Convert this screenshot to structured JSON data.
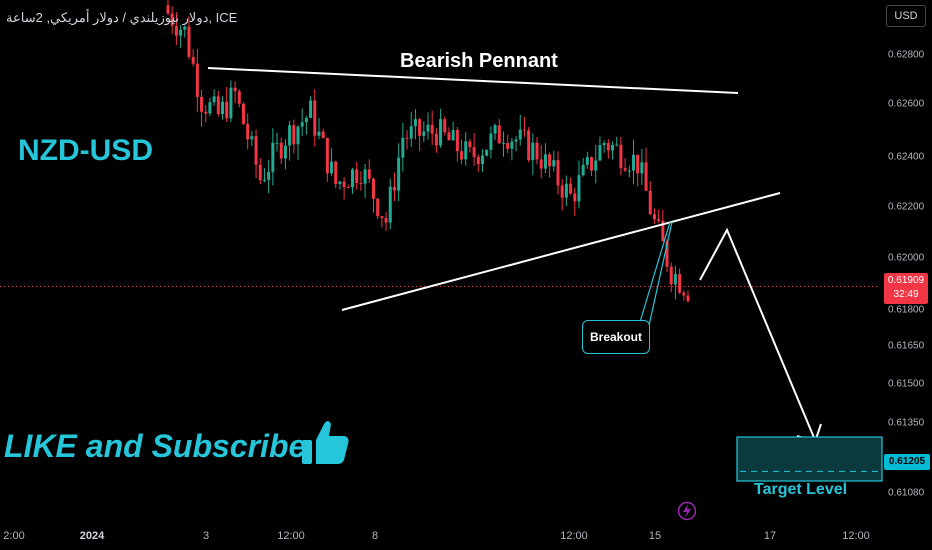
{
  "header": {
    "title": "دولار نيوزيلندي / دولار أمريكي, 2ساعة, ICE",
    "currency": "USD"
  },
  "y_axis_labels": [
    "0.62800",
    "0.62600",
    "0.62400",
    "0.62200",
    "0.62000",
    "0.61800",
    "0.61650",
    "0.61500",
    "0.61350",
    "0.61080"
  ],
  "x_axis_labels": [
    "2:00",
    "2024",
    "3",
    "12:00",
    "8",
    "12:00",
    "15",
    "17",
    "12:00"
  ],
  "current_price": {
    "value": "0.61909",
    "countdown": "32:49"
  },
  "target_price": "0.61205",
  "annotations": {
    "pattern": "Bearish Pennant",
    "symbol": "NZD-USD",
    "cta": "LIKE and Subscribe",
    "breakout": "Breakout",
    "target": "Target Level"
  },
  "icons": {
    "thumb": "thumbs-up-icon",
    "bolt": "lightning-icon"
  },
  "colors": {
    "up": "#22ab94",
    "down": "#f23645",
    "accent": "#26c6da",
    "line": "#ffffff"
  },
  "chart_data": {
    "type": "candlestick",
    "price_range": [
      0.6102,
      0.63
    ],
    "levels": {
      "current": 0.61909,
      "target": 0.61205
    },
    "seed": 7,
    "candle_count": 125
  }
}
